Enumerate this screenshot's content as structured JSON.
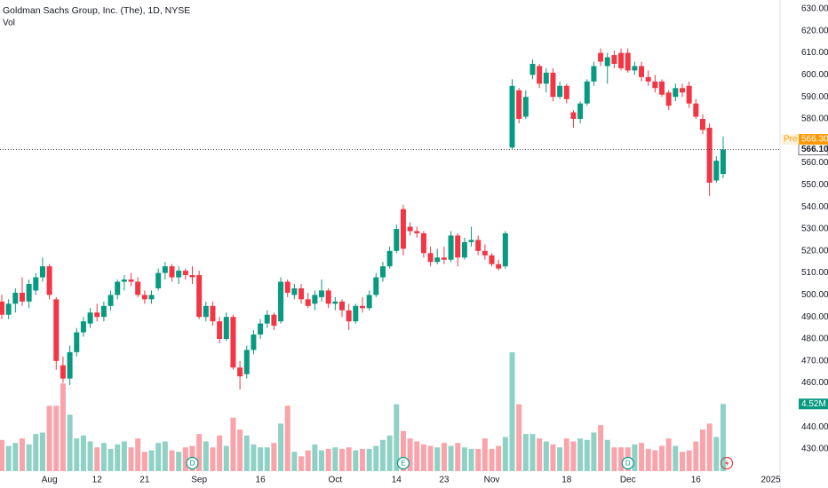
{
  "chart_data": {
    "type": "candlestick",
    "title": "Goldman Sachs Group, Inc. (The), 1D, NYSE",
    "volume_title": "Vol",
    "up_color": "#089981",
    "down_color": "#f23645",
    "open": [
      497,
      491,
      496,
      501,
      497,
      502,
      508,
      513,
      498,
      468,
      462,
      474,
      483,
      487,
      492,
      490,
      495,
      500,
      506,
      507,
      506,
      500,
      498,
      503,
      510,
      513,
      508,
      511,
      509,
      509,
      490,
      495,
      488,
      480,
      490,
      467,
      464,
      475,
      482,
      487,
      491,
      488,
      506,
      500,
      503,
      498,
      496,
      499,
      502,
      496,
      497,
      493,
      488,
      495,
      494,
      500,
      508,
      513,
      520,
      539,
      531,
      529,
      528,
      519,
      515,
      517,
      516,
      527,
      517,
      524,
      525,
      520,
      518,
      514,
      513,
      567,
      593,
      581,
      600,
      604,
      596,
      601,
      590,
      595,
      583,
      580,
      587,
      597,
      610,
      604,
      609,
      610,
      610,
      602,
      604,
      599,
      597,
      597,
      592,
      590,
      594,
      595,
      587,
      580,
      576,
      552,
      555
    ],
    "high": [
      500,
      498,
      503,
      508,
      507,
      510,
      517,
      514,
      499,
      472,
      477,
      485,
      490,
      494,
      496,
      497,
      502,
      507,
      509,
      510,
      508,
      502,
      502,
      512,
      515,
      514,
      513,
      512,
      513,
      511,
      497,
      497,
      490,
      492,
      491,
      470,
      477,
      484,
      489,
      493,
      492,
      508,
      507,
      505,
      505,
      501,
      502,
      507,
      503,
      499,
      498,
      496,
      496,
      499,
      502,
      510,
      515,
      522,
      532,
      541,
      533,
      531,
      529,
      522,
      521,
      522,
      529,
      528,
      526,
      531,
      527,
      523,
      519,
      516,
      529,
      598,
      594,
      593,
      607,
      605,
      603,
      603,
      597,
      596,
      584,
      588,
      598,
      606,
      612,
      610,
      611,
      612,
      612,
      606,
      606,
      602,
      600,
      598,
      593,
      596,
      596,
      597,
      589,
      582,
      578,
      563,
      572
    ],
    "low": [
      489,
      489,
      492,
      495,
      494,
      500,
      506,
      498,
      466,
      460,
      459,
      472,
      481,
      485,
      488,
      488,
      493,
      498,
      502,
      504,
      499,
      496,
      496,
      502,
      507,
      506,
      505,
      507,
      505,
      489,
      488,
      486,
      478,
      479,
      466,
      457,
      462,
      473,
      480,
      485,
      484,
      487,
      499,
      498,
      496,
      494,
      493,
      497,
      494,
      493,
      490,
      484,
      487,
      492,
      493,
      499,
      506,
      512,
      519,
      518,
      527,
      526,
      517,
      513,
      514,
      514,
      515,
      513,
      516,
      522,
      518,
      516,
      513,
      511,
      512,
      566,
      578,
      580,
      598,
      594,
      592,
      588,
      589,
      587,
      576,
      578,
      586,
      595,
      604,
      596,
      603,
      602,
      601,
      600,
      597,
      595,
      592,
      590,
      584,
      588,
      590,
      585,
      580,
      573,
      545,
      551,
      553
    ],
    "close": [
      491,
      496,
      501,
      497,
      505,
      508,
      513,
      500,
      470,
      462,
      474,
      483,
      488,
      492,
      490,
      495,
      500,
      506,
      507,
      506,
      500,
      498,
      500,
      510,
      513,
      508,
      511,
      509,
      508,
      490,
      495,
      488,
      480,
      490,
      467,
      463,
      475,
      482,
      487,
      491,
      486,
      506,
      501,
      503,
      498,
      495,
      500,
      502,
      496,
      497,
      493,
      488,
      495,
      494,
      500,
      508,
      513,
      520,
      530,
      521,
      529,
      528,
      519,
      515,
      517,
      516,
      527,
      517,
      524,
      525,
      520,
      518,
      514,
      512,
      528,
      595,
      580,
      590,
      605,
      596,
      601,
      590,
      595,
      589,
      580,
      587,
      597,
      604,
      606,
      608,
      605,
      603,
      602,
      604,
      599,
      597,
      594,
      591,
      586,
      594,
      592,
      587,
      581,
      575,
      551,
      561,
      566.1
    ],
    "volume": [
      2.1,
      1.7,
      1.9,
      2.2,
      1.8,
      2.5,
      2.6,
      4.4,
      4.4,
      5.9,
      3.8,
      2.2,
      2.4,
      2.0,
      1.6,
      1.9,
      1.5,
      1.8,
      2.0,
      1.6,
      2.2,
      1.3,
      1.4,
      1.9,
      2.0,
      1.4,
      1.3,
      1.6,
      1.7,
      2.5,
      2.0,
      1.6,
      2.4,
      1.7,
      3.6,
      2.8,
      2.4,
      1.8,
      1.6,
      1.6,
      1.9,
      3.2,
      4.4,
      1.3,
      1.0,
      1.4,
      1.8,
      1.4,
      1.5,
      1.6,
      1.5,
      1.6,
      1.4,
      1.5,
      1.5,
      1.7,
      2.1,
      2.4,
      4.5,
      2.7,
      2.2,
      2.0,
      1.8,
      1.7,
      1.6,
      1.9,
      1.7,
      1.9,
      1.6,
      1.5,
      1.5,
      2.2,
      1.5,
      1.7,
      2.3,
      8.0,
      4.5,
      2.5,
      2.5,
      2.2,
      2.0,
      1.8,
      1.6,
      2.2,
      2.0,
      2.2,
      2.1,
      2.6,
      3.1,
      2.1,
      1.6,
      1.6,
      1.6,
      1.8,
      1.9,
      1.5,
      1.4,
      1.7,
      2.2,
      1.7,
      1.3,
      1.4,
      2.0,
      2.8,
      3.2,
      2.3,
      4.52
    ],
    "volume_last_label": "4.52M",
    "ylim": [
      430,
      630
    ],
    "yticks": [
      {
        "value": 630,
        "label": "630.00"
      },
      {
        "value": 620,
        "label": "620.00"
      },
      {
        "value": 610,
        "label": "610.00"
      },
      {
        "value": 600,
        "label": "600.00"
      },
      {
        "value": 590,
        "label": "590.00"
      },
      {
        "value": 580,
        "label": "580.00"
      },
      {
        "value": 560,
        "label": "560.00"
      },
      {
        "value": 550,
        "label": "550.00"
      },
      {
        "value": 540,
        "label": "540.00"
      },
      {
        "value": 530,
        "label": "530.00"
      },
      {
        "value": 520,
        "label": "520.00"
      },
      {
        "value": 510,
        "label": "510.00"
      },
      {
        "value": 500,
        "label": "500.00"
      },
      {
        "value": 490,
        "label": "490.00"
      },
      {
        "value": 480,
        "label": "480.00"
      },
      {
        "value": 470,
        "label": "470.00"
      },
      {
        "value": 460,
        "label": "460.00"
      },
      {
        "value": 440,
        "label": "440.00"
      },
      {
        "value": 430,
        "label": "430.00"
      }
    ],
    "xticks": [
      {
        "value": 7,
        "label": "Aug"
      },
      {
        "value": 14,
        "label": "12"
      },
      {
        "value": 21,
        "label": "21"
      },
      {
        "value": 29,
        "label": "Sep"
      },
      {
        "value": 38,
        "label": "16"
      },
      {
        "value": 49,
        "label": "Oct"
      },
      {
        "value": 58,
        "label": "14"
      },
      {
        "value": 65,
        "label": "23"
      },
      {
        "value": 72,
        "label": "Nov"
      },
      {
        "value": 83,
        "label": "18"
      },
      {
        "value": 92,
        "label": "Dec"
      },
      {
        "value": 102,
        "label": "16"
      },
      {
        "value": 113,
        "label": "2025"
      }
    ],
    "last_price": {
      "value": 566.1,
      "label": "566.10"
    },
    "pre_market": {
      "tag": "Pre",
      "value": 566.3,
      "label": "566.30"
    },
    "events": [
      {
        "index": 28,
        "label": "D"
      },
      {
        "index": 59,
        "label": "E"
      },
      {
        "index": 92,
        "label": "D"
      }
    ]
  }
}
